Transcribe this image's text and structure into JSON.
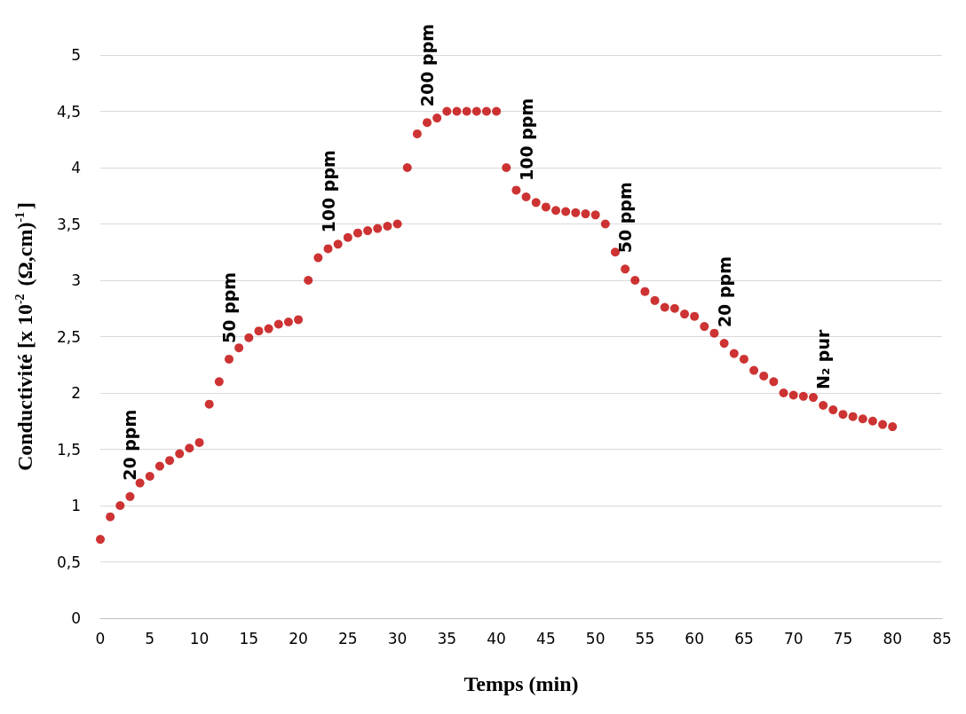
{
  "chart_data": {
    "type": "scatter",
    "xlabel": "Temps (min)",
    "ylabel": "Conductivité [x 10$^{-2}$ (Ω,cm)$^{-1}$]",
    "x": [
      0,
      1,
      2,
      3,
      4,
      5,
      6,
      7,
      8,
      9,
      10,
      11,
      12,
      13,
      14,
      15,
      16,
      17,
      18,
      19,
      20,
      21,
      22,
      23,
      24,
      25,
      26,
      27,
      28,
      29,
      30,
      31,
      32,
      33,
      34,
      35,
      36,
      37,
      38,
      39,
      40,
      41,
      42,
      43,
      44,
      45,
      46,
      47,
      48,
      49,
      50,
      51,
      52,
      53,
      54,
      55,
      56,
      57,
      58,
      59,
      60,
      61,
      62,
      63,
      64,
      65,
      66,
      67,
      68,
      69,
      70,
      71,
      72,
      73,
      74,
      75,
      76,
      77,
      78,
      79,
      80
    ],
    "series": [
      {
        "color": "#c00000",
        "values": [
          0.7,
          0.9,
          1.0,
          1.08,
          1.2,
          1.26,
          1.35,
          1.4,
          1.46,
          1.51,
          1.56,
          1.9,
          2.1,
          2.3,
          2.4,
          2.49,
          2.55,
          2.57,
          2.61,
          2.63,
          2.65,
          3.0,
          3.2,
          3.28,
          3.32,
          3.38,
          3.42,
          3.44,
          3.46,
          3.48,
          3.5,
          4.0,
          4.3,
          4.4,
          4.44,
          4.5,
          4.5,
          4.5,
          4.5,
          4.5,
          4.5,
          4.0,
          3.8,
          3.74,
          3.69,
          3.65,
          3.62,
          3.61,
          3.6,
          3.59,
          3.58,
          3.5,
          3.25,
          3.1,
          3.0,
          2.9,
          2.82,
          2.76,
          2.75,
          2.7,
          2.68,
          2.59,
          2.53,
          2.44,
          2.35,
          2.3,
          2.2,
          2.15,
          2.1,
          2.0,
          1.98,
          1.97,
          1.96,
          1.89,
          1.85,
          1.81,
          1.79,
          1.77,
          1.75,
          1.72,
          1.7
        ]
      }
    ],
    "annotations": [
      "20 ppm",
      "50 ppm",
      "100 ppm",
      "200 ppm",
      "100 ppm",
      "50 ppm",
      "20 ppm",
      "N₂ pur"
    ],
    "xlim": [
      0,
      85
    ],
    "xticks": [
      0,
      5,
      10,
      15,
      20,
      25,
      30,
      35,
      40,
      45,
      50,
      55,
      60,
      65,
      70,
      75,
      80,
      85
    ],
    "ylim": [
      0,
      5
    ],
    "yticks": [
      0,
      {
        "value": 0.5,
        "label": "0,5"
      },
      1,
      {
        "value": 1.5,
        "label": "1,5"
      },
      2,
      {
        "value": 2.5,
        "label": "2,5"
      },
      3,
      {
        "value": 3.5,
        "label": "3,5"
      },
      4,
      {
        "value": 4.5,
        "label": "4,5"
      },
      5
    ],
    "grid": "y",
    "marker": "circle"
  }
}
